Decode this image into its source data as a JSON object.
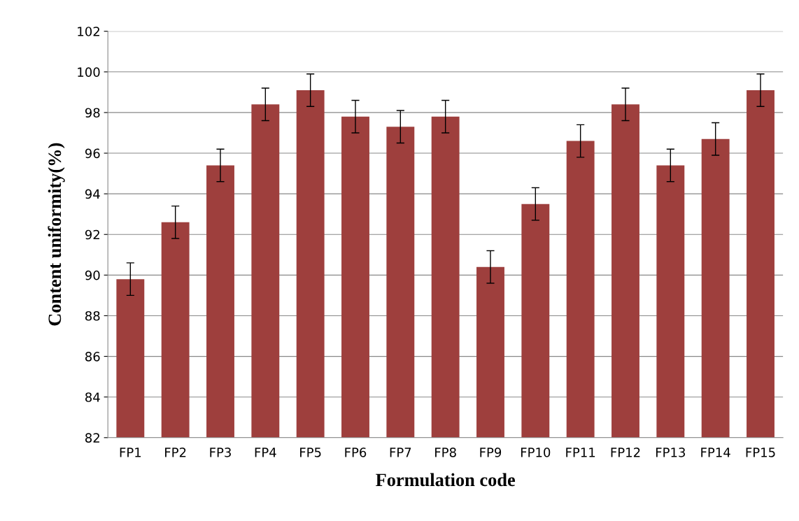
{
  "chart_data": {
    "type": "bar",
    "xlabel": "Formulation code",
    "ylabel": "Content uniformity(%)",
    "categories": [
      "FP1",
      "FP2",
      "FP3",
      "FP4",
      "FP5",
      "FP6",
      "FP7",
      "FP8",
      "FP9",
      "FP10",
      "FP11",
      "FP12",
      "FP13",
      "FP14",
      "FP15"
    ],
    "values": [
      89.8,
      92.6,
      95.4,
      98.4,
      99.1,
      97.8,
      97.3,
      97.8,
      90.4,
      93.5,
      96.6,
      98.4,
      95.4,
      96.7,
      99.1
    ],
    "errors": [
      0.8,
      0.8,
      0.8,
      0.8,
      0.8,
      0.8,
      0.8,
      0.8,
      0.8,
      0.8,
      0.8,
      0.8,
      0.8,
      0.8,
      0.8
    ],
    "color": "#9e3f3d",
    "ylim": [
      82,
      102
    ],
    "yticks": [
      82,
      84,
      86,
      88,
      90,
      92,
      94,
      96,
      98,
      100,
      102
    ],
    "grid": "y"
  }
}
